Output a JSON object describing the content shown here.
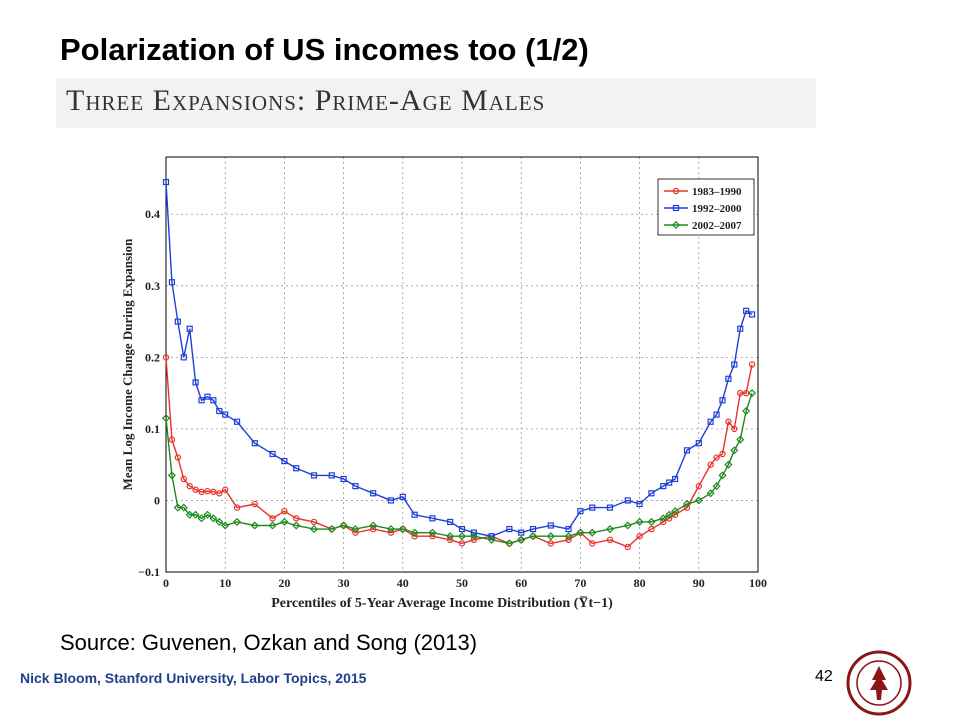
{
  "slide": {
    "title": "Polarization of US incomes too (1/2)",
    "banner": "Three Expansions: Prime-Age Males",
    "source": "Source: Guvenen, Ozkan and Song (2013)",
    "footer": "Nick Bloom, Stanford University, Labor Topics, 2015",
    "page_number": "42"
  },
  "colors": {
    "series_1983_1990": "#e8332a",
    "series_1992_2000": "#1f3fd8",
    "series_2002_2007": "#1f8a1f",
    "seal": "#8c1515"
  },
  "chart_data": {
    "type": "line",
    "title": "",
    "xlabel": "Percentiles of 5-Year Average Income Distribution (Y̅t−1)",
    "ylabel": "Mean Log Income Change During Expansion",
    "xlim": [
      0,
      100
    ],
    "ylim": [
      -0.1,
      0.48
    ],
    "xticks": [
      "0",
      "10",
      "20",
      "30",
      "40",
      "50",
      "60",
      "70",
      "80",
      "90",
      "100"
    ],
    "yticks": [
      "−0.1",
      "0",
      "0.1",
      "0.2",
      "0.3",
      "0.4"
    ],
    "grid": true,
    "legend_position": "top-right",
    "x": [
      0,
      1,
      2,
      3,
      4,
      5,
      6,
      7,
      8,
      9,
      10,
      12,
      15,
      18,
      20,
      22,
      25,
      28,
      30,
      32,
      35,
      38,
      40,
      42,
      45,
      48,
      50,
      52,
      55,
      58,
      60,
      62,
      65,
      68,
      70,
      72,
      75,
      78,
      80,
      82,
      84,
      85,
      86,
      88,
      90,
      92,
      93,
      94,
      95,
      96,
      97,
      98,
      99
    ],
    "series": [
      {
        "name": "1983–1990",
        "marker": "circle",
        "values": [
          0.2,
          0.085,
          0.06,
          0.03,
          0.02,
          0.015,
          0.012,
          0.013,
          0.012,
          0.01,
          0.015,
          -0.01,
          -0.005,
          -0.025,
          -0.015,
          -0.025,
          -0.03,
          -0.04,
          -0.035,
          -0.045,
          -0.04,
          -0.045,
          -0.04,
          -0.05,
          -0.05,
          -0.055,
          -0.06,
          -0.055,
          -0.05,
          -0.06,
          -0.055,
          -0.05,
          -0.06,
          -0.055,
          -0.045,
          -0.06,
          -0.055,
          -0.065,
          -0.05,
          -0.04,
          -0.03,
          -0.025,
          -0.02,
          -0.01,
          0.02,
          0.05,
          0.06,
          0.065,
          0.11,
          0.1,
          0.15,
          0.15,
          0.19
        ]
      },
      {
        "name": "1992–2000",
        "marker": "square",
        "values": [
          0.445,
          0.305,
          0.25,
          0.2,
          0.24,
          0.165,
          0.14,
          0.145,
          0.14,
          0.125,
          0.12,
          0.11,
          0.08,
          0.065,
          0.055,
          0.045,
          0.035,
          0.035,
          0.03,
          0.02,
          0.01,
          0.0,
          0.005,
          -0.02,
          -0.025,
          -0.03,
          -0.04,
          -0.045,
          -0.05,
          -0.04,
          -0.045,
          -0.04,
          -0.035,
          -0.04,
          -0.015,
          -0.01,
          -0.01,
          0.0,
          -0.005,
          0.01,
          0.02,
          0.025,
          0.03,
          0.07,
          0.08,
          0.11,
          0.12,
          0.14,
          0.17,
          0.19,
          0.24,
          0.265,
          0.26
        ]
      },
      {
        "name": "2002–2007",
        "marker": "diamond",
        "values": [
          0.115,
          0.035,
          -0.01,
          -0.01,
          -0.02,
          -0.02,
          -0.025,
          -0.02,
          -0.025,
          -0.03,
          -0.035,
          -0.03,
          -0.035,
          -0.035,
          -0.03,
          -0.035,
          -0.04,
          -0.04,
          -0.035,
          -0.04,
          -0.035,
          -0.04,
          -0.04,
          -0.045,
          -0.045,
          -0.05,
          -0.05,
          -0.05,
          -0.055,
          -0.06,
          -0.055,
          -0.05,
          -0.05,
          -0.05,
          -0.045,
          -0.045,
          -0.04,
          -0.035,
          -0.03,
          -0.03,
          -0.025,
          -0.02,
          -0.015,
          -0.005,
          0.0,
          0.01,
          0.02,
          0.035,
          0.05,
          0.07,
          0.085,
          0.125,
          0.15
        ]
      }
    ]
  }
}
